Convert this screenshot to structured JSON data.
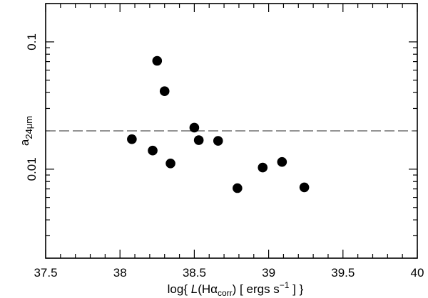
{
  "chart_data": {
    "type": "scatter",
    "xlim": [
      37.5,
      40
    ],
    "ylim": [
      0.002,
      0.2
    ],
    "yscale": "log",
    "x_ticks": [
      37.5,
      38,
      38.5,
      39,
      39.5,
      40
    ],
    "x_tick_labels": [
      "37.5",
      "38",
      "38.5",
      "39",
      "39.5",
      "40"
    ],
    "y_ticks": [
      0.01,
      0.1
    ],
    "y_tick_labels": [
      "0.01",
      "0.1"
    ],
    "xlabel": {
      "prefix": "log{ ",
      "L": "L",
      "open": "(Hα",
      "sub": "corr",
      "middle": ") [ ergs s",
      "sup": "−1",
      "suffix": " ] }"
    },
    "ylabel": {
      "main": "a",
      "sub": "24μm"
    },
    "reference_line": {
      "y": 0.02,
      "style": "dashed",
      "color": "#555555"
    },
    "grid": false,
    "points": [
      {
        "x": 38.08,
        "y": 0.0172
      },
      {
        "x": 38.22,
        "y": 0.014
      },
      {
        "x": 38.25,
        "y": 0.071
      },
      {
        "x": 38.3,
        "y": 0.041
      },
      {
        "x": 38.34,
        "y": 0.0111
      },
      {
        "x": 38.5,
        "y": 0.0212
      },
      {
        "x": 38.53,
        "y": 0.0169
      },
      {
        "x": 38.66,
        "y": 0.0167
      },
      {
        "x": 38.79,
        "y": 0.0071
      },
      {
        "x": 38.96,
        "y": 0.0103
      },
      {
        "x": 39.09,
        "y": 0.0114
      },
      {
        "x": 39.24,
        "y": 0.0072
      }
    ],
    "marker_color": "#000000"
  }
}
